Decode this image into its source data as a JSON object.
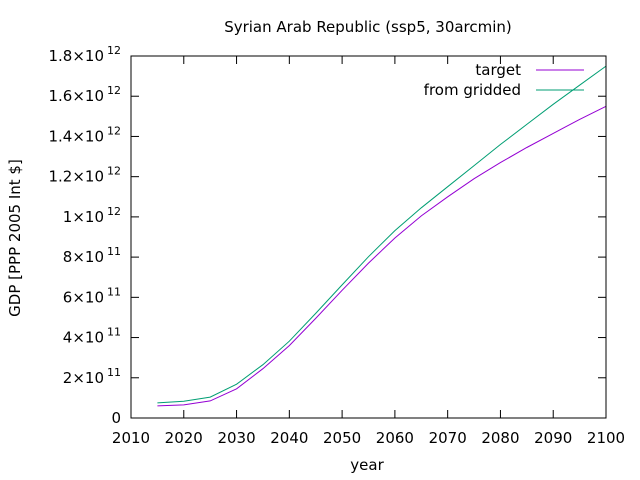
{
  "chart_data": {
    "type": "line",
    "title": "Syrian Arab Republic (ssp5, 30arcmin)",
    "xlabel": "year",
    "ylabel": "GDP [PPP 2005 Int $]",
    "xlim": [
      2010,
      2100
    ],
    "ylim": [
      0,
      1800000000000.0
    ],
    "x_ticks": [
      2010,
      2020,
      2030,
      2040,
      2050,
      2060,
      2070,
      2080,
      2090,
      2100
    ],
    "y_ticks": [
      {
        "value": 0,
        "mantissa": "0",
        "exp": ""
      },
      {
        "value": 200000000000.0,
        "mantissa": "2×10",
        "exp": "11"
      },
      {
        "value": 400000000000.0,
        "mantissa": "4×10",
        "exp": "11"
      },
      {
        "value": 600000000000.0,
        "mantissa": "6×10",
        "exp": "11"
      },
      {
        "value": 800000000000.0,
        "mantissa": "8×10",
        "exp": "11"
      },
      {
        "value": 1000000000000.0,
        "mantissa": "1×10",
        "exp": "12"
      },
      {
        "value": 1200000000000.0,
        "mantissa": "1.2×10",
        "exp": "12"
      },
      {
        "value": 1400000000000.0,
        "mantissa": "1.4×10",
        "exp": "12"
      },
      {
        "value": 1600000000000.0,
        "mantissa": "1.6×10",
        "exp": "12"
      },
      {
        "value": 1800000000000.0,
        "mantissa": "1.8×10",
        "exp": "12"
      }
    ],
    "grid": false,
    "legend_position": "top-right",
    "x": [
      2015,
      2020,
      2025,
      2030,
      2035,
      2040,
      2045,
      2050,
      2055,
      2060,
      2065,
      2070,
      2075,
      2080,
      2085,
      2090,
      2095,
      2100
    ],
    "series": [
      {
        "name": "target",
        "color": "#9400d3",
        "values": [
          60000000000.0,
          65000000000.0,
          85000000000.0,
          145000000000.0,
          245000000000.0,
          360000000000.0,
          495000000000.0,
          635000000000.0,
          770000000000.0,
          895000000000.0,
          1005000000000.0,
          1100000000000.0,
          1190000000000.0,
          1270000000000.0,
          1345000000000.0,
          1415000000000.0,
          1485000000000.0,
          1550000000000.0
        ]
      },
      {
        "name": "from gridded",
        "color": "#009e73",
        "values": [
          75000000000.0,
          83000000000.0,
          104000000000.0,
          168000000000.0,
          265000000000.0,
          382000000000.0,
          520000000000.0,
          662000000000.0,
          802000000000.0,
          932000000000.0,
          1045000000000.0,
          1150000000000.0,
          1255000000000.0,
          1360000000000.0,
          1460000000000.0,
          1560000000000.0,
          1655000000000.0,
          1750000000000.0
        ]
      }
    ]
  }
}
